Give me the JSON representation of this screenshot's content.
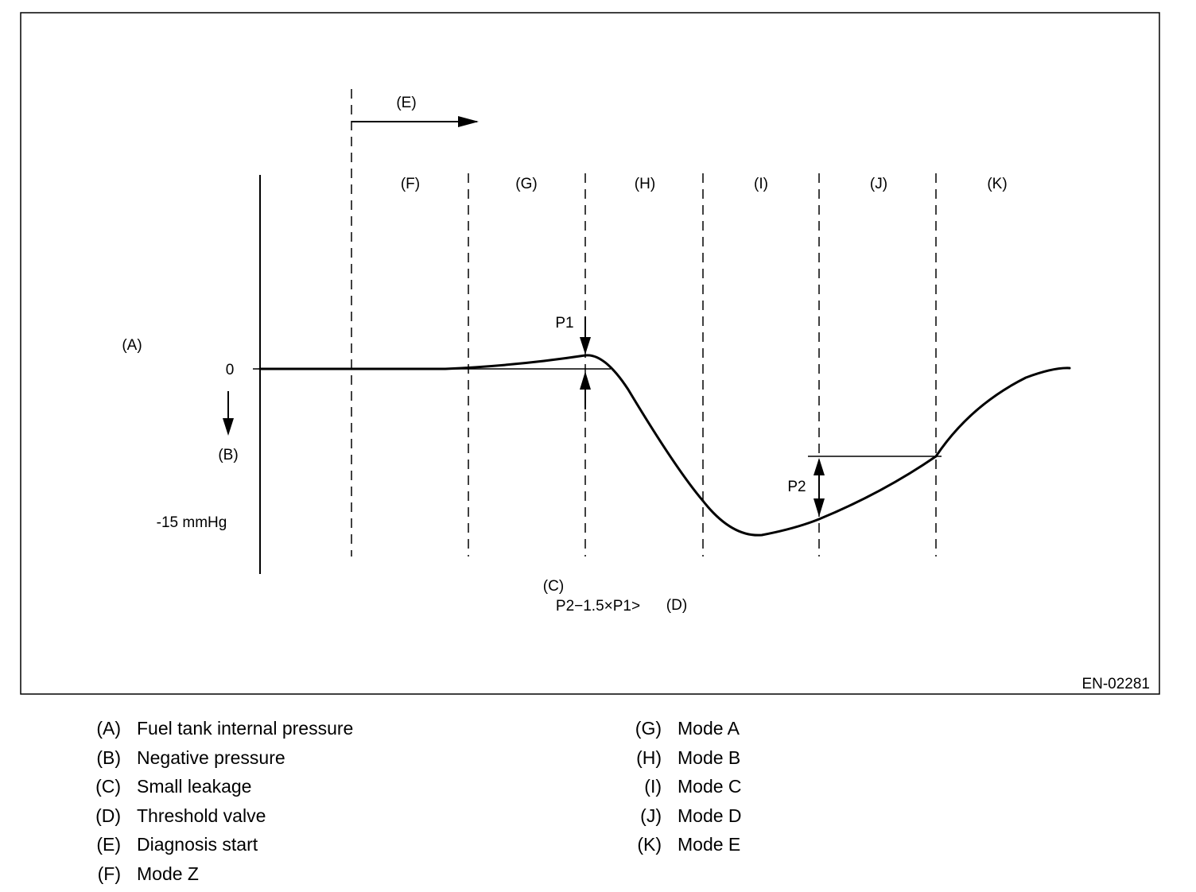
{
  "diagram": {
    "labels": {
      "pressure_axis": "(A)",
      "zero": "0",
      "negative": "(B)",
      "minus15": "-15 mmHg",
      "diagnosis_start": "(E)",
      "small_leakage": "(C)",
      "formula": "P2−1.5×P1>",
      "threshold": "(D)",
      "p1": "P1",
      "p2": "P2",
      "figure_code": "EN-02281"
    },
    "modes": [
      "(F)",
      "(G)",
      "(H)",
      "(I)",
      "(J)",
      "(K)"
    ]
  },
  "legend": {
    "left": [
      {
        "key": "(A)",
        "text": "Fuel tank internal pressure"
      },
      {
        "key": "(B)",
        "text": "Negative pressure"
      },
      {
        "key": "(C)",
        "text": "Small leakage"
      },
      {
        "key": "(D)",
        "text": "Threshold valve"
      },
      {
        "key": "(E)",
        "text": "Diagnosis start"
      },
      {
        "key": "(F)",
        "text": "Mode Z"
      }
    ],
    "right": [
      {
        "key": "(G)",
        "text": "Mode A"
      },
      {
        "key": "(H)",
        "text": "Mode B"
      },
      {
        "key": "(I)",
        "text": "Mode C"
      },
      {
        "key": "(J)",
        "text": "Mode D"
      },
      {
        "key": "(K)",
        "text": "Mode E"
      }
    ]
  }
}
